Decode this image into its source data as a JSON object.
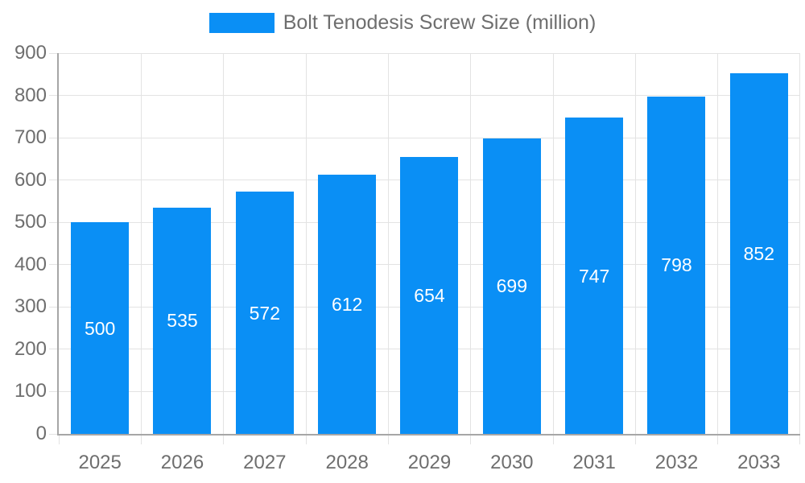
{
  "chart_data": {
    "type": "bar",
    "title": "Bolt Tenodesis Screw Size (million)",
    "legend": {
      "label": "Bolt Tenodesis Screw Size (million)",
      "position": "top"
    },
    "categories": [
      "2025",
      "2026",
      "2027",
      "2028",
      "2029",
      "2030",
      "2031",
      "2032",
      "2033"
    ],
    "series": [
      {
        "name": "Bolt Tenodesis Screw Size (million)",
        "values": [
          500,
          535,
          572,
          612,
          654,
          699,
          747,
          798,
          852
        ]
      }
    ],
    "values": [
      500,
      535,
      572,
      612,
      654,
      699,
      747,
      798,
      852
    ],
    "data_labels": {
      "show": true,
      "position": "center",
      "color": "#ffffff"
    },
    "xlabel": "",
    "ylabel": "",
    "ylim": [
      0,
      900
    ],
    "ytick_step": 100,
    "yticks": [
      0,
      100,
      200,
      300,
      400,
      500,
      600,
      700,
      800,
      900
    ],
    "grid": true,
    "colors": {
      "bar": "#0a8ff5",
      "grid": "#e3e3e3",
      "axis": "#a6a6a6",
      "text": "#6e6e6e",
      "data_label": "#ffffff",
      "background": "#ffffff"
    }
  }
}
